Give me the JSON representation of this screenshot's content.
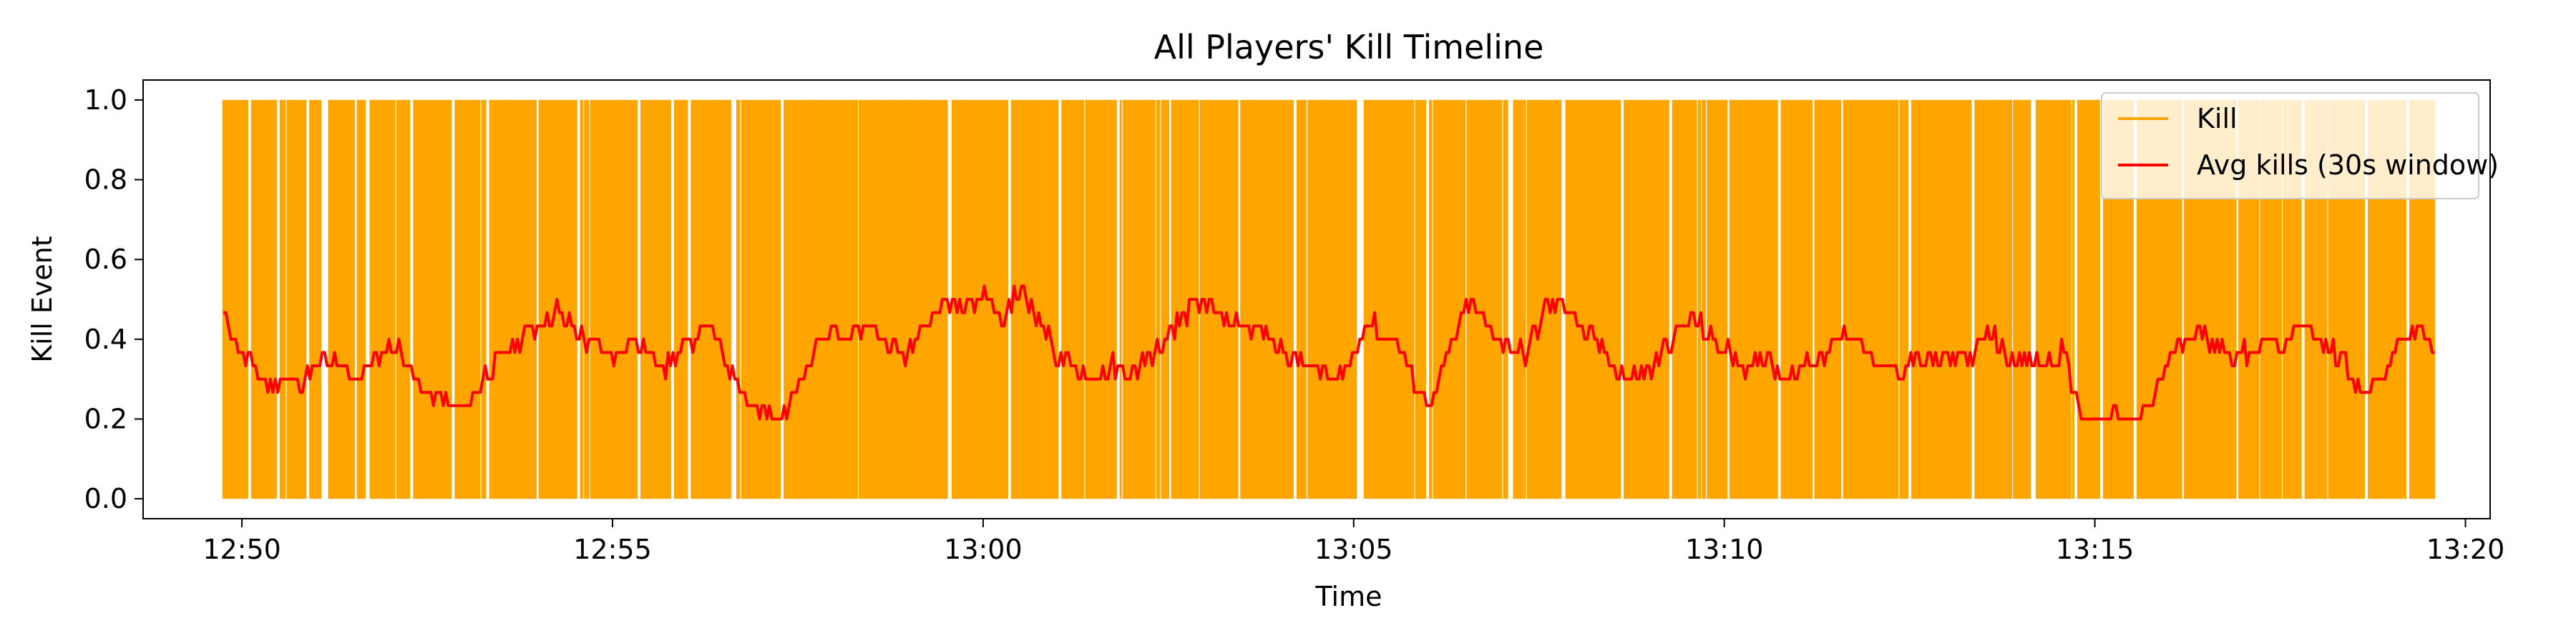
{
  "chart_data": {
    "type": "line",
    "title": "All Players' Kill Timeline",
    "xlabel": "Time",
    "ylabel": "Kill Event",
    "xlim": [
      "12:48:40",
      "13:20:20"
    ],
    "ylim": [
      -0.05,
      1.05
    ],
    "x_ticks": [
      "12:50",
      "12:55",
      "13:00",
      "13:05",
      "13:10",
      "13:15",
      "13:20"
    ],
    "y_ticks": [
      "0.0",
      "0.2",
      "0.4",
      "0.6",
      "0.8",
      "1.0"
    ],
    "grid": false,
    "legend_position": "top-right",
    "kill_time_range": [
      "12:49:45",
      "13:19:35"
    ],
    "kill_gaps": [
      [
        "12:50:05",
        "12:50:08"
      ],
      [
        "12:50:28",
        "12:50:31"
      ],
      [
        "12:50:52",
        "12:50:55"
      ],
      [
        "12:51:04",
        "12:51:10"
      ],
      [
        "12:51:40",
        "12:51:43"
      ],
      [
        "12:52:16",
        "12:52:19"
      ],
      [
        "12:52:50",
        "12:52:53"
      ],
      [
        "12:53:18",
        "12:53:21"
      ],
      [
        "12:53:58",
        "12:54:01"
      ],
      [
        "12:54:31",
        "12:54:34"
      ],
      [
        "12:55:20",
        "12:55:23"
      ],
      [
        "12:55:47",
        "12:55:50"
      ],
      [
        "12:56:01",
        "12:56:04"
      ],
      [
        "12:56:37",
        "12:56:40"
      ],
      [
        "12:57:16",
        "12:57:19"
      ],
      [
        "12:59:31",
        "12:59:35"
      ],
      [
        "13:00:20",
        "13:00:23"
      ],
      [
        "13:01:01",
        "13:01:04"
      ],
      [
        "13:01:48",
        "13:01:51"
      ],
      [
        "13:02:30",
        "13:02:33"
      ],
      [
        "13:03:26",
        "13:03:29"
      ],
      [
        "13:04:11",
        "13:04:14"
      ],
      [
        "13:05:03",
        "13:05:09"
      ],
      [
        "13:05:58",
        "13:06:01"
      ],
      [
        "13:07:05",
        "13:07:08"
      ],
      [
        "13:07:49",
        "13:07:52"
      ],
      [
        "13:08:36",
        "13:08:39"
      ],
      [
        "13:09:15",
        "13:09:18"
      ],
      [
        "13:10:02",
        "13:10:05"
      ],
      [
        "13:10:43",
        "13:10:46"
      ],
      [
        "13:11:34",
        "13:11:37"
      ],
      [
        "13:12:29",
        "13:12:32"
      ],
      [
        "13:13:20",
        "13:13:23"
      ],
      [
        "13:14:08",
        "13:14:13"
      ],
      [
        "13:14:43",
        "13:14:46"
      ],
      [
        "13:15:04",
        "13:15:07"
      ],
      [
        "13:15:31",
        "13:15:34"
      ],
      [
        "13:16:10",
        "13:16:13"
      ],
      [
        "13:16:54",
        "13:16:57"
      ],
      [
        "13:17:47",
        "13:17:50"
      ],
      [
        "13:18:38",
        "13:18:41"
      ],
      [
        "13:19:12",
        "13:19:15"
      ]
    ],
    "series": [
      {
        "name": "Kill",
        "color": "#ffa500",
        "style": "vertical lines from 0 to 1 at each kill event"
      },
      {
        "name": "Avg kills (30s window)",
        "color": "#ff0000",
        "x": [
          "12:49:45",
          "12:50:00",
          "12:50:20",
          "12:50:35",
          "12:50:50",
          "12:51:05",
          "12:51:20",
          "12:51:35",
          "12:51:50",
          "12:52:05",
          "12:52:20",
          "12:52:30",
          "12:52:45",
          "12:53:00",
          "12:53:15",
          "12:53:30",
          "12:53:45",
          "12:54:00",
          "12:54:15",
          "12:54:30",
          "12:54:45",
          "12:55:00",
          "12:55:15",
          "12:55:30",
          "12:55:45",
          "12:56:00",
          "12:56:15",
          "12:56:30",
          "12:56:45",
          "12:57:00",
          "12:57:15",
          "12:57:30",
          "12:57:45",
          "12:58:00",
          "12:58:15",
          "12:58:30",
          "12:58:45",
          "12:59:00",
          "12:59:15",
          "12:59:30",
          "12:59:45",
          "13:00:00",
          "13:00:15",
          "13:00:30",
          "13:00:45",
          "13:01:00",
          "13:01:15",
          "13:01:30",
          "13:01:45",
          "13:02:00",
          "13:02:15",
          "13:02:30",
          "13:02:45",
          "13:03:00",
          "13:03:15",
          "13:03:30",
          "13:03:45",
          "13:04:00",
          "13:04:15",
          "13:04:30",
          "13:04:45",
          "13:05:00",
          "13:05:10",
          "13:05:20",
          "13:05:35",
          "13:05:50",
          "13:06:05",
          "13:06:20",
          "13:06:35",
          "13:06:50",
          "13:07:05",
          "13:07:20",
          "13:07:35",
          "13:07:50",
          "13:08:05",
          "13:08:20",
          "13:08:35",
          "13:08:50",
          "13:09:05",
          "13:09:20",
          "13:09:35",
          "13:09:50",
          "13:10:05",
          "13:10:20",
          "13:10:35",
          "13:10:50",
          "13:11:05",
          "13:11:20",
          "13:11:35",
          "13:11:50",
          "13:12:05",
          "13:12:20",
          "13:12:35",
          "13:12:50",
          "13:13:05",
          "13:13:20",
          "13:13:35",
          "13:13:50",
          "13:14:05",
          "13:14:20",
          "13:14:35",
          "13:14:50",
          "13:15:05",
          "13:15:20",
          "13:15:35",
          "13:15:50",
          "13:16:05",
          "13:16:20",
          "13:16:35",
          "13:16:50",
          "13:17:05",
          "13:17:20",
          "13:17:35",
          "13:17:50",
          "13:18:05",
          "13:18:20",
          "13:18:35",
          "13:18:50",
          "13:19:05",
          "13:19:20",
          "13:19:35"
        ],
        "values": [
          0.47,
          0.37,
          0.28,
          0.3,
          0.3,
          0.34,
          0.33,
          0.3,
          0.36,
          0.38,
          0.3,
          0.26,
          0.24,
          0.22,
          0.3,
          0.36,
          0.4,
          0.44,
          0.47,
          0.42,
          0.38,
          0.36,
          0.4,
          0.36,
          0.33,
          0.38,
          0.44,
          0.36,
          0.28,
          0.22,
          0.18,
          0.3,
          0.38,
          0.42,
          0.4,
          0.44,
          0.38,
          0.36,
          0.46,
          0.5,
          0.48,
          0.51,
          0.45,
          0.52,
          0.46,
          0.36,
          0.32,
          0.3,
          0.33,
          0.3,
          0.36,
          0.4,
          0.47,
          0.48,
          0.45,
          0.43,
          0.42,
          0.38,
          0.35,
          0.32,
          0.3,
          0.36,
          0.45,
          0.42,
          0.4,
          0.28,
          0.24,
          0.4,
          0.5,
          0.42,
          0.38,
          0.36,
          0.48,
          0.5,
          0.42,
          0.38,
          0.32,
          0.3,
          0.34,
          0.42,
          0.46,
          0.4,
          0.36,
          0.32,
          0.36,
          0.3,
          0.34,
          0.36,
          0.41,
          0.4,
          0.33,
          0.32,
          0.36,
          0.34,
          0.36,
          0.34,
          0.42,
          0.36,
          0.34,
          0.33,
          0.37,
          0.2,
          0.19,
          0.22,
          0.18,
          0.28,
          0.38,
          0.42,
          0.4,
          0.36,
          0.37,
          0.4,
          0.38,
          0.46,
          0.38,
          0.36,
          0.26,
          0.3,
          0.38,
          0.44,
          0.36
        ]
      }
    ]
  }
}
